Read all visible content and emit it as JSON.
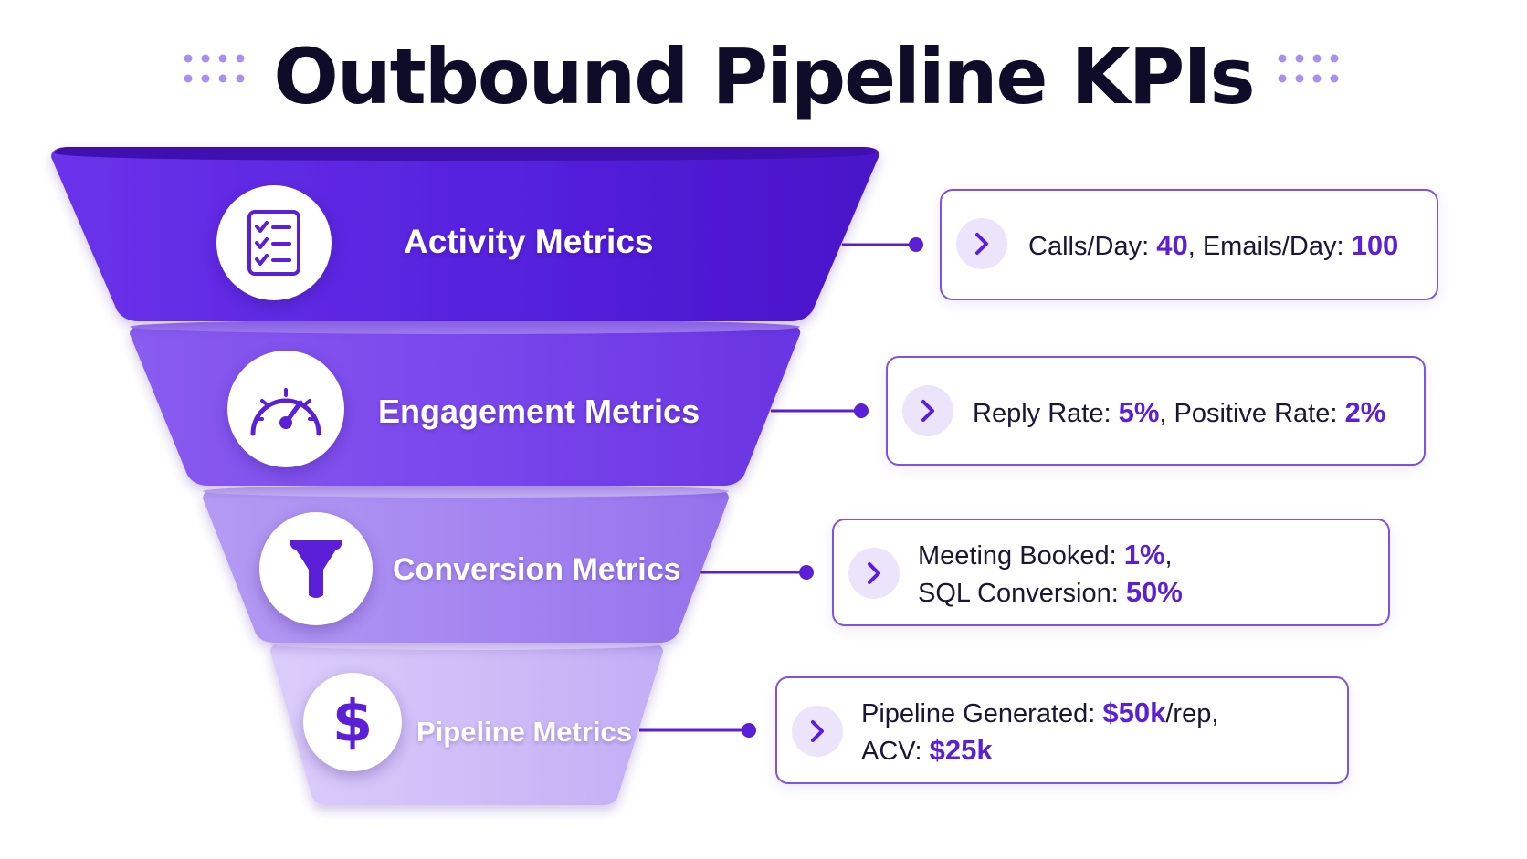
{
  "title": "Outbound Pipeline KPIs",
  "stages": [
    {
      "label": "Activity Metrics",
      "icon": "checklist-icon",
      "kpis": [
        {
          "label": "Calls/Day: ",
          "value": "40",
          "sep": ", "
        },
        {
          "label": "Emails/Day: ",
          "value": "100"
        }
      ]
    },
    {
      "label": "Engagement Metrics",
      "icon": "speedometer-icon",
      "kpis": [
        {
          "label": "Reply Rate: ",
          "value": "5%",
          "sep": ", "
        },
        {
          "label": "Positive Rate: ",
          "value": "2%"
        }
      ]
    },
    {
      "label": "Conversion Metrics",
      "icon": "funnel-icon",
      "kpis": [
        {
          "label": "Meeting Booked: ",
          "value": "1%",
          "sep": ","
        },
        {
          "label": "SQL Conversion: ",
          "value": "50%"
        }
      ]
    },
    {
      "label": "Pipeline Metrics",
      "icon": "dollar-icon",
      "kpis": [
        {
          "label": "Pipeline Generated: ",
          "value": "$50k",
          "suffix": "/rep",
          "sep": ","
        },
        {
          "label": "ACV: ",
          "value": "$25k"
        }
      ]
    }
  ],
  "colors": {
    "title": "#0f0c29",
    "accent": "#5a1fd6",
    "card_border": "#7b54e0",
    "stage_1": "#5b21e0",
    "stage_2": "#7a4cec",
    "stage_3": "#a686f0",
    "stage_4": "#cdbcf7"
  }
}
